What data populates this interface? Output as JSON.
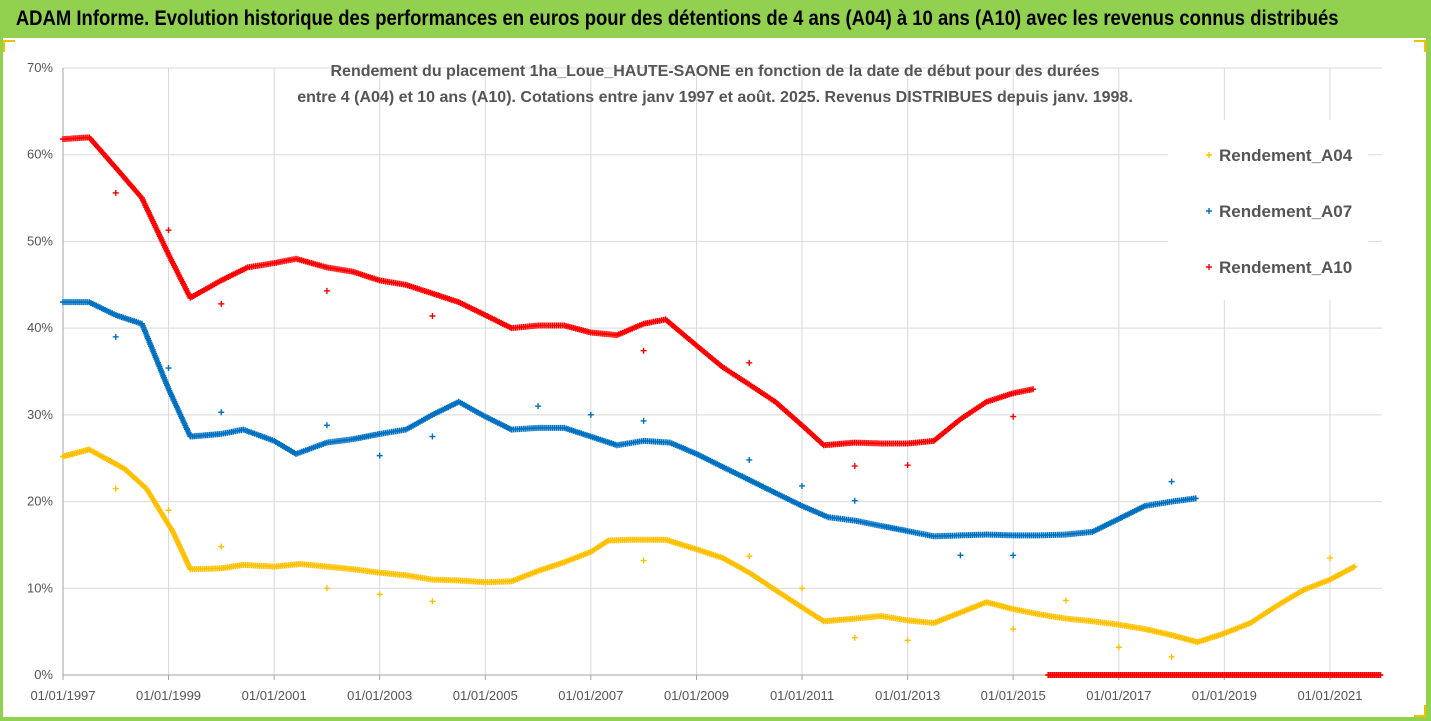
{
  "header": {
    "title": "ADAM Informe. Evolution historique des performances en euros pour des détentions de 4 ans (A04) à 10 ans (A10) avec les revenus connus distribués"
  },
  "colors": {
    "banner": "#92d050",
    "A04": "#ffc000",
    "A07": "#0070c0",
    "A10": "#ff0000",
    "grid": "#d9d9d9"
  },
  "chart_data": {
    "type": "scatter",
    "title_lines": [
      "Rendement du placement 1ha_Loue_HAUTE-SAONE en fonction de la date de début pour des durées",
      "entre 4 (A04) et 10 ans (A10). Cotations entre janv 1997 et août. 2025. Revenus DISTRIBUES depuis janv. 1998."
    ],
    "xlabel": "",
    "ylabel": "",
    "x_range": [
      "1997-01-01",
      "2022-01-01"
    ],
    "ylim": [
      0,
      70
    ],
    "y_ticks": [
      "0%",
      "10%",
      "20%",
      "30%",
      "40%",
      "50%",
      "60%",
      "70%"
    ],
    "x_ticks": [
      "01/01/1997",
      "01/01/1999",
      "01/01/2001",
      "01/01/2003",
      "01/01/2005",
      "01/01/2007",
      "01/01/2009",
      "01/01/2011",
      "01/01/2013",
      "01/01/2015",
      "01/01/2017",
      "01/01/2019",
      "01/01/2021"
    ],
    "grid": true,
    "legend_position": "right",
    "series": [
      {
        "name": "Rendement_A04",
        "color": "#ffc000",
        "points": [
          [
            "1997-01-01",
            25.2
          ],
          [
            "1997-07-01",
            26.0
          ],
          [
            "1998-03-01",
            23.8
          ],
          [
            "1998-08-01",
            21.5
          ],
          [
            "1999-02-01",
            16.5
          ],
          [
            "1999-06-01",
            12.2
          ],
          [
            "2000-01-01",
            12.3
          ],
          [
            "2000-06-01",
            12.7
          ],
          [
            "2001-01-01",
            12.5
          ],
          [
            "2001-07-01",
            12.8
          ],
          [
            "2002-01-01",
            12.5
          ],
          [
            "2002-07-01",
            12.2
          ],
          [
            "2003-01-01",
            11.8
          ],
          [
            "2003-07-01",
            11.5
          ],
          [
            "2004-01-01",
            11.0
          ],
          [
            "2004-07-01",
            10.9
          ],
          [
            "2005-01-01",
            10.7
          ],
          [
            "2005-07-01",
            10.8
          ],
          [
            "2006-01-01",
            12.0
          ],
          [
            "2006-07-01",
            13.0
          ],
          [
            "2007-01-01",
            14.2
          ],
          [
            "2007-05-01",
            15.5
          ],
          [
            "2007-10-01",
            15.6
          ],
          [
            "2008-06-01",
            15.6
          ],
          [
            "2009-01-01",
            14.5
          ],
          [
            "2009-07-01",
            13.5
          ],
          [
            "2010-01-01",
            11.8
          ],
          [
            "2010-07-01",
            9.8
          ],
          [
            "2011-01-01",
            7.8
          ],
          [
            "2011-06-01",
            6.2
          ],
          [
            "2012-01-01",
            6.5
          ],
          [
            "2012-07-01",
            6.8
          ],
          [
            "2013-01-01",
            6.3
          ],
          [
            "2013-07-01",
            6.0
          ],
          [
            "2014-01-01",
            7.2
          ],
          [
            "2014-07-01",
            8.4
          ],
          [
            "2015-01-01",
            7.6
          ],
          [
            "2015-07-01",
            7.0
          ],
          [
            "2016-01-01",
            6.5
          ],
          [
            "2016-07-01",
            6.2
          ],
          [
            "2017-01-01",
            5.8
          ],
          [
            "2017-07-01",
            5.3
          ],
          [
            "2018-01-01",
            4.6
          ],
          [
            "2018-07-01",
            3.8
          ],
          [
            "2019-01-01",
            4.8
          ],
          [
            "2019-07-01",
            6.0
          ],
          [
            "2020-01-01",
            8.0
          ],
          [
            "2020-07-01",
            9.8
          ],
          [
            "2021-01-01",
            11.0
          ],
          [
            "2021-07-01",
            12.6
          ]
        ],
        "outliers": [
          [
            "1998-01-01",
            21.5
          ],
          [
            "1999-01-01",
            19.0
          ],
          [
            "2000-01-01",
            14.8
          ],
          [
            "2002-01-01",
            10.0
          ],
          [
            "2003-01-01",
            9.3
          ],
          [
            "2004-01-01",
            8.5
          ],
          [
            "2008-01-01",
            13.2
          ],
          [
            "2010-01-01",
            13.7
          ],
          [
            "2011-01-01",
            10.0
          ],
          [
            "2012-01-01",
            4.3
          ],
          [
            "2013-01-01",
            4.0
          ],
          [
            "2015-01-01",
            5.3
          ],
          [
            "2016-01-01",
            8.6
          ],
          [
            "2017-01-01",
            3.2
          ],
          [
            "2018-01-01",
            2.1
          ],
          [
            "2021-01-01",
            13.5
          ]
        ]
      },
      {
        "name": "Rendement_A07",
        "color": "#0070c0",
        "points": [
          [
            "1997-01-01",
            43.0
          ],
          [
            "1997-07-01",
            43.0
          ],
          [
            "1998-01-01",
            41.5
          ],
          [
            "1998-07-01",
            40.5
          ],
          [
            "1999-01-01",
            33.0
          ],
          [
            "1999-06-01",
            27.5
          ],
          [
            "2000-01-01",
            27.8
          ],
          [
            "2000-06-01",
            28.3
          ],
          [
            "2001-01-01",
            27.0
          ],
          [
            "2001-06-01",
            25.5
          ],
          [
            "2002-01-01",
            26.8
          ],
          [
            "2002-07-01",
            27.2
          ],
          [
            "2003-01-01",
            27.8
          ],
          [
            "2003-07-01",
            28.3
          ],
          [
            "2004-01-01",
            30.0
          ],
          [
            "2004-07-01",
            31.5
          ],
          [
            "2005-01-01",
            29.8
          ],
          [
            "2005-07-01",
            28.3
          ],
          [
            "2006-01-01",
            28.5
          ],
          [
            "2006-07-01",
            28.5
          ],
          [
            "2007-01-01",
            27.5
          ],
          [
            "2007-07-01",
            26.5
          ],
          [
            "2008-01-01",
            27.0
          ],
          [
            "2008-07-01",
            26.8
          ],
          [
            "2009-01-01",
            25.5
          ],
          [
            "2009-07-01",
            24.0
          ],
          [
            "2010-01-01",
            22.5
          ],
          [
            "2010-07-01",
            21.0
          ],
          [
            "2011-01-01",
            19.5
          ],
          [
            "2011-07-01",
            18.2
          ],
          [
            "2012-01-01",
            17.8
          ],
          [
            "2012-07-01",
            17.2
          ],
          [
            "2013-01-01",
            16.6
          ],
          [
            "2013-07-01",
            16.0
          ],
          [
            "2014-01-01",
            16.1
          ],
          [
            "2014-07-01",
            16.2
          ],
          [
            "2015-01-01",
            16.1
          ],
          [
            "2015-07-01",
            16.1
          ],
          [
            "2016-01-01",
            16.2
          ],
          [
            "2016-07-01",
            16.5
          ],
          [
            "2017-01-01",
            18.0
          ],
          [
            "2017-07-01",
            19.5
          ],
          [
            "2018-01-01",
            20.0
          ],
          [
            "2018-07-01",
            20.4
          ]
        ],
        "outliers": [
          [
            "1998-01-01",
            39.0
          ],
          [
            "1999-01-01",
            35.4
          ],
          [
            "2000-01-01",
            30.3
          ],
          [
            "2002-01-01",
            28.8
          ],
          [
            "2003-01-01",
            25.3
          ],
          [
            "2004-01-01",
            27.5
          ],
          [
            "2006-01-01",
            31.0
          ],
          [
            "2007-01-01",
            30.0
          ],
          [
            "2008-01-01",
            29.3
          ],
          [
            "2010-01-01",
            24.8
          ],
          [
            "2011-01-01",
            21.8
          ],
          [
            "2012-01-01",
            20.1
          ],
          [
            "2014-01-01",
            13.8
          ],
          [
            "2015-01-01",
            13.8
          ],
          [
            "2018-01-01",
            22.3
          ]
        ]
      },
      {
        "name": "Rendement_A10",
        "color": "#ff0000",
        "points": [
          [
            "1997-01-01",
            61.8
          ],
          [
            "1997-07-01",
            62.0
          ],
          [
            "1998-01-01",
            58.5
          ],
          [
            "1998-07-01",
            55.0
          ],
          [
            "1999-01-01",
            48.5
          ],
          [
            "1999-06-01",
            43.5
          ],
          [
            "2000-01-01",
            45.5
          ],
          [
            "2000-07-01",
            47.0
          ],
          [
            "2001-01-01",
            47.5
          ],
          [
            "2001-06-01",
            48.0
          ],
          [
            "2002-01-01",
            47.0
          ],
          [
            "2002-07-01",
            46.5
          ],
          [
            "2003-01-01",
            45.5
          ],
          [
            "2003-07-01",
            45.0
          ],
          [
            "2004-01-01",
            44.0
          ],
          [
            "2004-07-01",
            43.0
          ],
          [
            "2005-01-01",
            41.5
          ],
          [
            "2005-07-01",
            40.0
          ],
          [
            "2006-01-01",
            40.3
          ],
          [
            "2006-07-01",
            40.3
          ],
          [
            "2007-01-01",
            39.5
          ],
          [
            "2007-07-01",
            39.2
          ],
          [
            "2008-01-01",
            40.5
          ],
          [
            "2008-06-01",
            41.0
          ],
          [
            "2009-01-01",
            38.0
          ],
          [
            "2009-07-01",
            35.5
          ],
          [
            "2010-01-01",
            33.5
          ],
          [
            "2010-07-01",
            31.5
          ],
          [
            "2011-01-01",
            28.8
          ],
          [
            "2011-06-01",
            26.5
          ],
          [
            "2012-01-01",
            26.8
          ],
          [
            "2012-07-01",
            26.7
          ],
          [
            "2013-01-01",
            26.7
          ],
          [
            "2013-07-01",
            27.0
          ],
          [
            "2014-01-01",
            29.5
          ],
          [
            "2014-07-01",
            31.5
          ],
          [
            "2015-01-01",
            32.5
          ],
          [
            "2015-06-01",
            33.0
          ]
        ],
        "zero_run": [
          "2015-09-01",
          "2022-01-01"
        ],
        "outliers": [
          [
            "1998-01-01",
            55.6
          ],
          [
            "1999-01-01",
            51.3
          ],
          [
            "2000-01-01",
            42.8
          ],
          [
            "2002-01-01",
            44.3
          ],
          [
            "2004-01-01",
            41.4
          ],
          [
            "2008-01-01",
            37.4
          ],
          [
            "2010-01-01",
            36.0
          ],
          [
            "2012-01-01",
            24.1
          ],
          [
            "2013-01-01",
            24.2
          ],
          [
            "2015-01-01",
            29.8
          ]
        ]
      }
    ]
  }
}
